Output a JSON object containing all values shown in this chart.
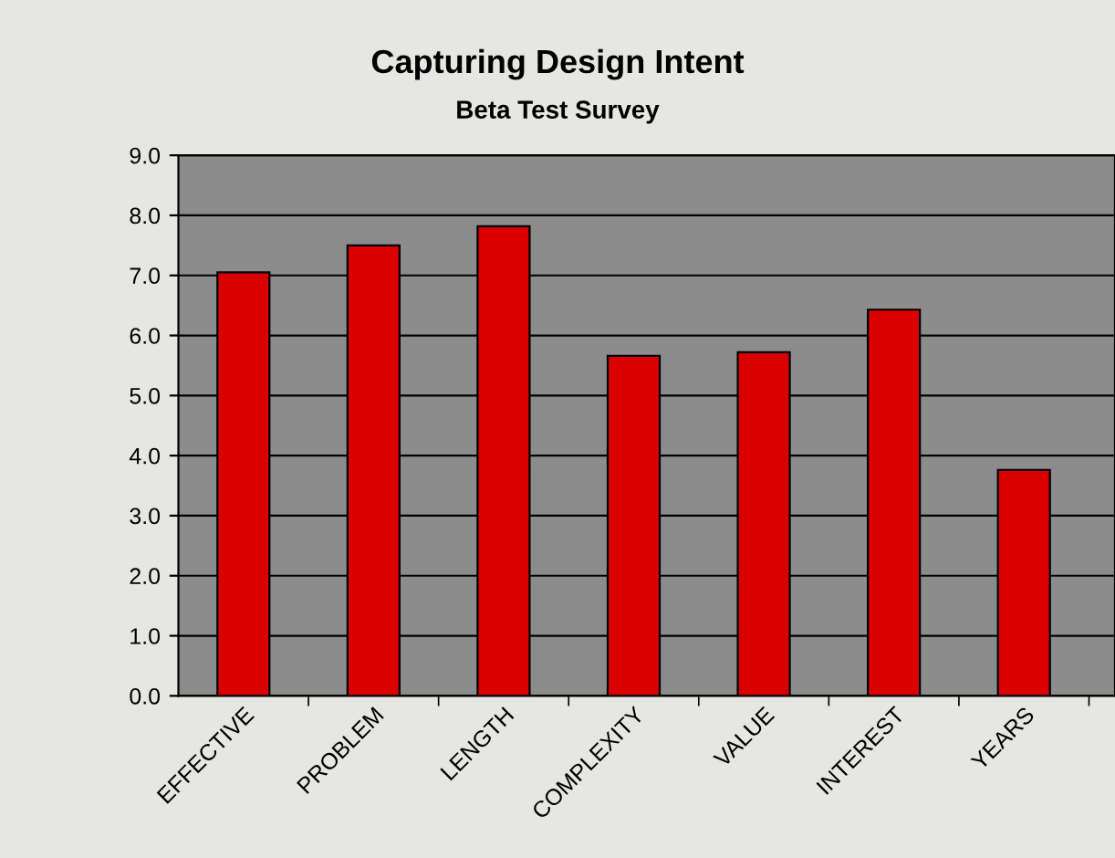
{
  "chart_data": {
    "type": "bar",
    "title": "Capturing Design Intent",
    "subtitle": "Beta Test Survey",
    "categories": [
      "EFFECTIVE",
      "PROBLEM",
      "LENGTH",
      "COMPLEXITY",
      "VALUE",
      "INTEREST",
      "YEARS"
    ],
    "values": [
      7.05,
      7.5,
      7.82,
      5.66,
      5.72,
      6.43,
      3.76
    ],
    "color": "#d80000",
    "ylim": [
      0,
      9
    ],
    "yticks": [
      {
        "value": 0,
        "label": "0.0"
      },
      {
        "value": 1,
        "label": "1.0"
      },
      {
        "value": 2,
        "label": "2.0"
      },
      {
        "value": 3,
        "label": "3.0"
      },
      {
        "value": 4,
        "label": "4.0"
      },
      {
        "value": 5,
        "label": "5.0"
      },
      {
        "value": 6,
        "label": "6.0"
      },
      {
        "value": 7,
        "label": "7.0"
      },
      {
        "value": 8,
        "label": "8.0"
      },
      {
        "value": 9,
        "label": "9.0"
      }
    ],
    "grid": "y",
    "legend": false
  }
}
